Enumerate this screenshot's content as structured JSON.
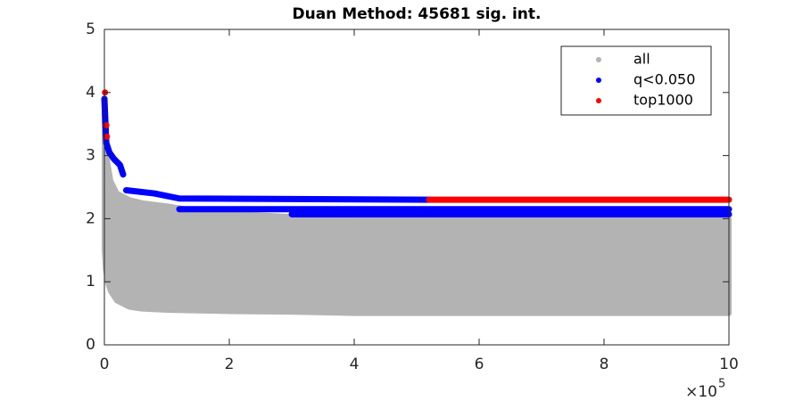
{
  "chart_data": {
    "type": "scatter",
    "title": "Duan Method: 45681 sig. int.",
    "xlim": [
      0,
      1000000
    ],
    "ylim": [
      0,
      5
    ],
    "xticks": [
      {
        "value": 0,
        "label": "0"
      },
      {
        "value": 200000,
        "label": "2"
      },
      {
        "value": 400000,
        "label": "4"
      },
      {
        "value": 600000,
        "label": "6"
      },
      {
        "value": 800000,
        "label": "8"
      },
      {
        "value": 1000000,
        "label": "10"
      }
    ],
    "yticks": [
      0,
      1,
      2,
      3,
      4,
      5
    ],
    "x_exponent_base": "×10",
    "x_exponent_power": "5",
    "legend_position": "upper right",
    "series": [
      {
        "name": "all",
        "color": "#b3b3b3",
        "x": [
          0,
          2000,
          5000,
          10000,
          20000,
          40000,
          60000,
          100000,
          150000,
          200000,
          300000,
          400000,
          500000,
          600000,
          700000,
          800000,
          900000,
          1000000
        ],
        "upper": [
          3.8,
          3.3,
          2.9,
          2.6,
          2.4,
          2.3,
          2.25,
          2.2,
          2.12,
          2.08,
          2.03,
          2.0,
          2.0,
          2.0,
          2.0,
          2.0,
          2.0,
          2.0
        ],
        "lower": [
          1.5,
          1.2,
          1.0,
          0.85,
          0.7,
          0.6,
          0.57,
          0.55,
          0.54,
          0.53,
          0.52,
          0.5,
          0.5,
          0.5,
          0.5,
          0.5,
          0.5,
          0.5
        ]
      },
      {
        "name": "q<0.050",
        "color": "#0000ff",
        "x": [
          0,
          3000,
          8000,
          15000,
          25000,
          30000,
          null,
          35000,
          80000,
          120000,
          520000,
          null,
          120000,
          300000,
          1000000,
          null,
          300000,
          1000000
        ],
        "values": [
          3.9,
          3.2,
          3.05,
          2.95,
          2.85,
          2.7,
          null,
          2.45,
          2.4,
          2.32,
          2.3,
          null,
          2.15,
          2.15,
          2.15,
          null,
          2.07,
          2.07
        ]
      },
      {
        "name": "top1000",
        "color": "#ff0000",
        "x": [
          1000,
          null,
          3000,
          null,
          4000,
          null,
          520000,
          1000000
        ],
        "values": [
          4.0,
          null,
          3.48,
          null,
          3.3,
          null,
          2.3,
          2.3
        ]
      }
    ]
  }
}
